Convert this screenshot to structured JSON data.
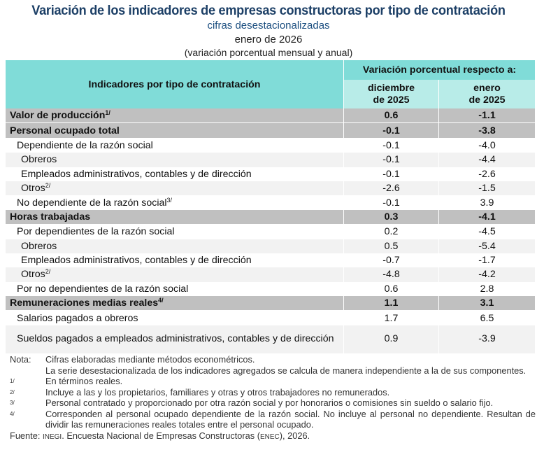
{
  "title": "Variación de los indicadores de empresas constructoras por tipo de contratación",
  "subtitle": "cifras desestacionalizadas",
  "period": "enero de 2026",
  "unit": "(variación porcentual mensual y anual)",
  "header": {
    "indicator": "Indicadores por tipo de contratación",
    "group": "Variación porcentual respecto a:",
    "col1_a": "diciembre",
    "col1_b": "de 2025",
    "col2_a": "enero",
    "col2_b": "de 2025"
  },
  "rows": [
    {
      "label": "Valor de producción",
      "sup": "1/",
      "m": "0.6",
      "a": "-1.1",
      "level": 0
    },
    {
      "label": "Personal ocupado total",
      "sup": "",
      "m": "-0.1",
      "a": "-3.8",
      "level": 0
    },
    {
      "label": "Dependiente de la razón social",
      "sup": "",
      "m": "-0.1",
      "a": "-4.0",
      "level": 1
    },
    {
      "label": "Obreros",
      "sup": "",
      "m": "-0.1",
      "a": "-4.4",
      "level": 2
    },
    {
      "label": "Empleados administrativos, contables y de dirección",
      "sup": "",
      "m": "-0.1",
      "a": "-2.6",
      "level": 2
    },
    {
      "label": "Otros",
      "sup": "2/",
      "m": "-2.6",
      "a": "-1.5",
      "level": 2
    },
    {
      "label": "No dependiente de la razón social",
      "sup": "3/",
      "m": "-0.1",
      "a": "3.9",
      "level": 1
    },
    {
      "label": "Horas trabajadas",
      "sup": "",
      "m": "0.3",
      "a": "-4.1",
      "level": 0
    },
    {
      "label": "Por dependientes de la razón social",
      "sup": "",
      "m": "0.2",
      "a": "-4.5",
      "level": 1
    },
    {
      "label": "Obreros",
      "sup": "",
      "m": "0.5",
      "a": "-5.4",
      "level": 2
    },
    {
      "label": "Empleados administrativos, contables y de dirección",
      "sup": "",
      "m": "-0.7",
      "a": "-1.7",
      "level": 2
    },
    {
      "label": "Otros",
      "sup": "2/",
      "m": "-4.8",
      "a": "-4.2",
      "level": 2
    },
    {
      "label": "Por no dependientes de la razón social",
      "sup": "",
      "m": "0.6",
      "a": "2.8",
      "level": 1
    },
    {
      "label": "Remuneraciones medias reales",
      "sup": "4/",
      "m": "1.1",
      "a": "3.1",
      "level": 0
    },
    {
      "label": "Salarios pagados a obreros",
      "sup": "",
      "m": "1.7",
      "a": "6.5",
      "level": 1
    },
    {
      "label": "Sueldos pagados a empleados administrativos, contables y de dirección",
      "sup": "",
      "m": "0.9",
      "a": "-3.9",
      "level": 1
    }
  ],
  "notes": {
    "nota_label": "Nota:",
    "nota_1": "Cifras elaboradas mediante métodos econométricos.",
    "nota_2": "La serie desestacionalizada de los indicadores agregados se calcula de manera independiente a la de sus componentes.",
    "f1_key": "1/",
    "f1": "En términos reales.",
    "f2_key": "2/",
    "f2": "Incluye a las y los propietarios, familiares y otras y otros trabajadores no remunerados.",
    "f3_key": "3/",
    "f3": "Personal contratado y proporcionado por otra razón social y por honorarios o comisiones sin sueldo o salario fijo.",
    "f4_key": "4/",
    "f4": "Corresponden al personal ocupado dependiente de la razón social. No incluye al personal no dependiente. Resultan de dividir las remuneraciones reales totales entre el personal ocupado.",
    "source_label": "Fuente:",
    "source_org": "INEGI",
    "source_a": ". Encuesta Nacional de Empresas Constructoras (",
    "source_abbr": "ENEC",
    "source_b": "), 2026."
  },
  "colors": {
    "title": "#1c3f66",
    "header": "#80dcd8",
    "subheader": "#b8ece8",
    "group_row": "#c0c0c0",
    "alt_row": "#f2f2f2"
  }
}
